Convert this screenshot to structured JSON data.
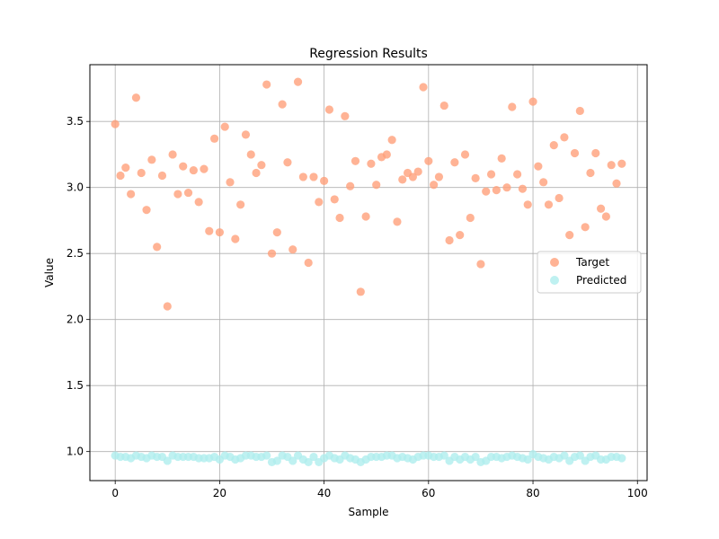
{
  "chart_data": {
    "type": "scatter",
    "title": "Regression Results",
    "xlabel": "Sample",
    "ylabel": "Value",
    "xlim": [
      -4.85,
      101.85
    ],
    "ylim": [
      0.78,
      3.93
    ],
    "xticks": [
      0,
      20,
      40,
      60,
      80,
      100
    ],
    "yticks": [
      1.0,
      1.5,
      2.0,
      2.5,
      3.0,
      3.5
    ],
    "xtick_labels": [
      "0",
      "20",
      "40",
      "60",
      "80",
      "100"
    ],
    "ytick_labels": [
      "1.0",
      "1.5",
      "2.0",
      "2.5",
      "3.0",
      "3.5"
    ],
    "grid": true,
    "legend_position": "center-right",
    "series": [
      {
        "name": "Target",
        "color": "#ffa07a",
        "x": [
          0,
          1,
          2,
          3,
          4,
          5,
          6,
          7,
          8,
          9,
          10,
          11,
          12,
          13,
          14,
          15,
          16,
          17,
          18,
          19,
          20,
          21,
          22,
          23,
          24,
          25,
          26,
          27,
          28,
          29,
          30,
          31,
          32,
          33,
          34,
          35,
          36,
          37,
          38,
          39,
          40,
          41,
          42,
          43,
          44,
          45,
          46,
          47,
          48,
          49,
          50,
          51,
          52,
          53,
          54,
          55,
          56,
          57,
          58,
          59,
          60,
          61,
          62,
          63,
          64,
          65,
          66,
          67,
          68,
          69,
          70,
          71,
          72,
          73,
          74,
          75,
          76,
          77,
          78,
          79,
          80,
          81,
          82,
          83,
          84,
          85,
          86,
          87,
          88,
          89,
          90,
          91,
          92,
          93,
          94,
          95,
          96,
          97
        ],
        "y": [
          3.48,
          3.09,
          3.15,
          2.95,
          3.68,
          3.11,
          2.83,
          3.21,
          2.55,
          3.09,
          2.1,
          3.25,
          2.95,
          3.16,
          2.96,
          3.13,
          2.89,
          3.14,
          2.67,
          3.37,
          2.66,
          3.46,
          3.04,
          2.61,
          2.87,
          3.4,
          3.25,
          3.11,
          3.17,
          3.78,
          2.5,
          2.66,
          3.63,
          3.19,
          2.53,
          3.8,
          3.08,
          2.43,
          3.08,
          2.89,
          3.05,
          3.59,
          2.91,
          2.77,
          3.54,
          3.01,
          3.2,
          2.21,
          2.78,
          3.18,
          3.02,
          3.23,
          3.25,
          3.36,
          2.74,
          3.06,
          3.11,
          3.08,
          3.12,
          3.76,
          3.2,
          3.02,
          3.08,
          3.62,
          2.6,
          3.19,
          2.64,
          3.25,
          2.77,
          3.07,
          2.42,
          2.97,
          3.1,
          2.98,
          3.22,
          3.0,
          3.61,
          3.1,
          2.99,
          2.87,
          3.65,
          3.16,
          3.04,
          2.87,
          3.32,
          2.92,
          3.38,
          2.64,
          3.26,
          3.58,
          2.7,
          3.11,
          3.26,
          2.84,
          2.78,
          3.17,
          3.03,
          3.18
        ]
      },
      {
        "name": "Predicted",
        "color": "#afeeee",
        "x": [
          0,
          1,
          2,
          3,
          4,
          5,
          6,
          7,
          8,
          9,
          10,
          11,
          12,
          13,
          14,
          15,
          16,
          17,
          18,
          19,
          20,
          21,
          22,
          23,
          24,
          25,
          26,
          27,
          28,
          29,
          30,
          31,
          32,
          33,
          34,
          35,
          36,
          37,
          38,
          39,
          40,
          41,
          42,
          43,
          44,
          45,
          46,
          47,
          48,
          49,
          50,
          51,
          52,
          53,
          54,
          55,
          56,
          57,
          58,
          59,
          60,
          61,
          62,
          63,
          64,
          65,
          66,
          67,
          68,
          69,
          70,
          71,
          72,
          73,
          74,
          75,
          76,
          77,
          78,
          79,
          80,
          81,
          82,
          83,
          84,
          85,
          86,
          87,
          88,
          89,
          90,
          91,
          92,
          93,
          94,
          95,
          96,
          97
        ],
        "y": [
          0.97,
          0.96,
          0.96,
          0.95,
          0.97,
          0.96,
          0.95,
          0.97,
          0.96,
          0.96,
          0.93,
          0.97,
          0.96,
          0.96,
          0.96,
          0.96,
          0.95,
          0.95,
          0.95,
          0.96,
          0.94,
          0.97,
          0.96,
          0.94,
          0.95,
          0.97,
          0.97,
          0.96,
          0.96,
          0.97,
          0.92,
          0.93,
          0.97,
          0.96,
          0.93,
          0.97,
          0.94,
          0.92,
          0.96,
          0.92,
          0.95,
          0.97,
          0.95,
          0.94,
          0.97,
          0.95,
          0.94,
          0.92,
          0.94,
          0.96,
          0.96,
          0.96,
          0.97,
          0.97,
          0.95,
          0.96,
          0.95,
          0.94,
          0.96,
          0.97,
          0.97,
          0.96,
          0.96,
          0.97,
          0.93,
          0.96,
          0.94,
          0.96,
          0.94,
          0.96,
          0.92,
          0.93,
          0.96,
          0.96,
          0.95,
          0.96,
          0.97,
          0.96,
          0.95,
          0.94,
          0.98,
          0.96,
          0.95,
          0.94,
          0.96,
          0.95,
          0.97,
          0.93,
          0.96,
          0.97,
          0.93,
          0.96,
          0.97,
          0.94,
          0.94,
          0.96,
          0.96,
          0.95
        ]
      }
    ]
  }
}
